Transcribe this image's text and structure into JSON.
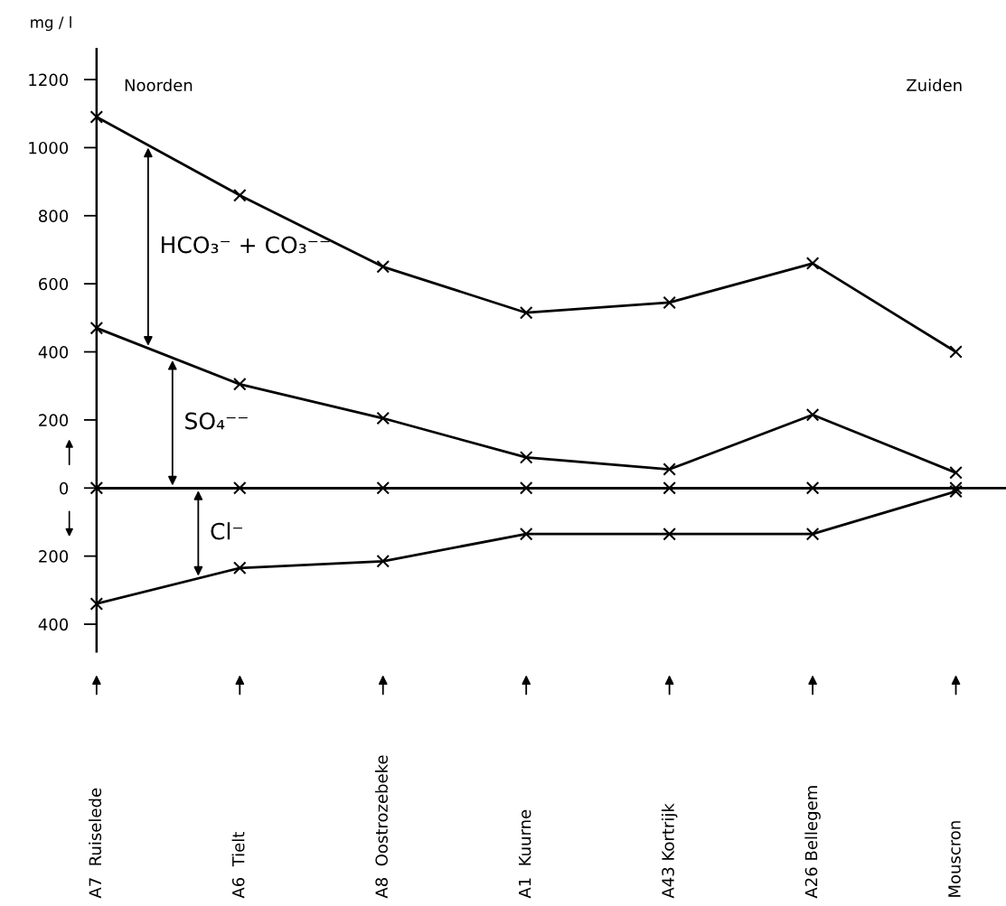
{
  "chart_data": {
    "type": "line",
    "ylabel": "mg / l",
    "categories": [
      "A7  Ruiselede",
      "A6  Tielt",
      "A8  Oostrozebeke",
      "A1  Kuurne",
      "A43 Kortrijk",
      "A26 Bellegem",
      "Mouscron"
    ],
    "series": [
      {
        "color": "#000000",
        "values": [
          1090,
          860,
          650,
          515,
          545,
          660,
          400
        ]
      },
      {
        "color": "#000000",
        "values": [
          470,
          305,
          205,
          90,
          55,
          215,
          45
        ]
      },
      {
        "color": "#000000",
        "values": [
          0,
          0,
          0,
          0,
          0,
          0,
          0
        ]
      },
      {
        "color": "#000000",
        "values": [
          -340,
          -235,
          -215,
          -135,
          -135,
          -135,
          -10
        ]
      }
    ],
    "ylim": [
      -480,
      1290
    ],
    "yticks": [
      {
        "value": -400,
        "label": "400"
      },
      {
        "value": -200,
        "label": "200"
      },
      0,
      200,
      400,
      600,
      800,
      1000,
      1200
    ],
    "annotations": [
      "Noorden",
      "Zuiden",
      "HCO₃⁻ + CO₃⁻⁻",
      "SO₄⁻⁻",
      "Cl⁻"
    ],
    "marker": "cross",
    "line_style": "solid",
    "grid": false,
    "legend": false
  }
}
